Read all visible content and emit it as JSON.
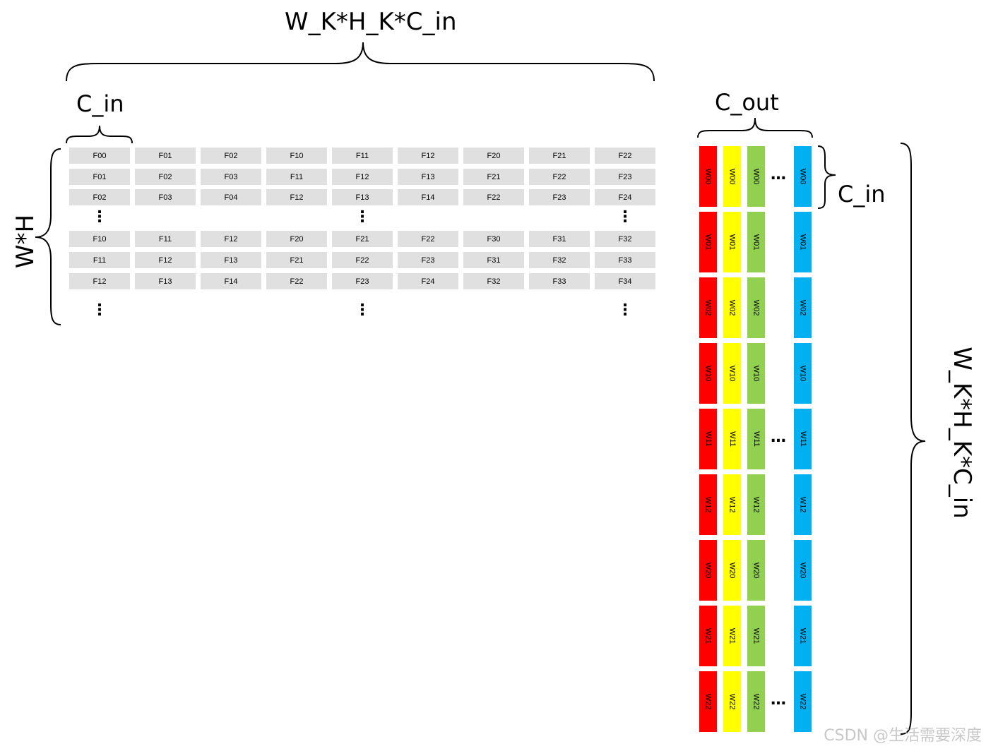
{
  "labels": {
    "top_dim": "W_K*H_K*C_in",
    "c_in_left": "C_in",
    "rows_dim": "W*H",
    "c_out": "C_out",
    "c_in_right": "C_in",
    "right_dim": "W_K*H_K*C_in"
  },
  "feature_matrix": {
    "rows": [
      [
        "F00",
        "F01",
        "F02",
        "F10",
        "F11",
        "F12",
        "F20",
        "F21",
        "F22"
      ],
      [
        "F01",
        "F02",
        "F03",
        "F11",
        "F12",
        "F13",
        "F21",
        "F22",
        "F23"
      ],
      [
        "F02",
        "F03",
        "F04",
        "F12",
        "F13",
        "F14",
        "F22",
        "F23",
        "F24"
      ],
      [
        "F10",
        "F11",
        "F12",
        "F20",
        "F21",
        "F22",
        "F30",
        "F31",
        "F32"
      ],
      [
        "F11",
        "F12",
        "F13",
        "F21",
        "F22",
        "F23",
        "F31",
        "F32",
        "F33"
      ],
      [
        "F12",
        "F13",
        "F14",
        "F22",
        "F23",
        "F24",
        "F32",
        "F33",
        "F34"
      ]
    ],
    "ellipsis": "⋮"
  },
  "weight_matrix": {
    "rows": [
      "W00",
      "W01",
      "W02",
      "W10",
      "W11",
      "W12",
      "W20",
      "W21",
      "W22"
    ],
    "column_colors": [
      "#ff0000",
      "#ffff00",
      "#92d050",
      "#00b0f0"
    ],
    "ellipsis": "…"
  },
  "watermark": "CSDN @生活需要深度"
}
